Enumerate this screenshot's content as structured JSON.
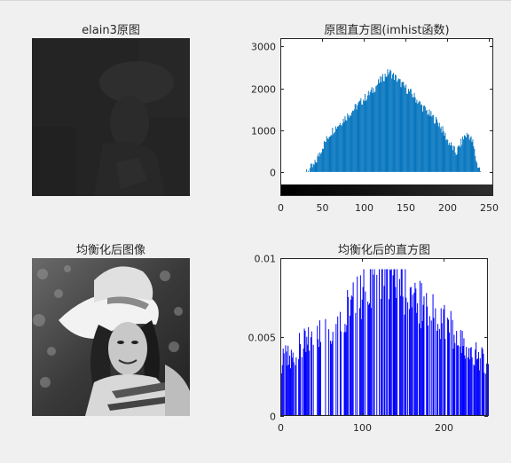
{
  "subplots": [
    {
      "title": "elain3原图"
    },
    {
      "title": "原图直方图(imhist函数)"
    },
    {
      "title": "均衡化后图像"
    },
    {
      "title": "均衡化后的直方图"
    }
  ],
  "chart_data": [
    {
      "type": "bar",
      "title": "原图直方图(imhist函数)",
      "xlabel": "",
      "ylabel": "",
      "xlim": [
        0,
        255
      ],
      "ylim": [
        -300,
        3200
      ],
      "xticks": [
        "0",
        "50",
        "100",
        "150",
        "200",
        "250"
      ],
      "yticks": [
        "0",
        "1000",
        "2000",
        "3000"
      ],
      "x": [
        30,
        40,
        50,
        60,
        70,
        80,
        90,
        100,
        110,
        120,
        130,
        140,
        150,
        160,
        170,
        180,
        190,
        200,
        210,
        220,
        225,
        230,
        235,
        240
      ],
      "values": [
        0,
        150,
        600,
        950,
        1150,
        1350,
        1550,
        1750,
        1950,
        2200,
        2400,
        2200,
        2000,
        1800,
        1550,
        1350,
        1150,
        750,
        450,
        850,
        900,
        700,
        200,
        0
      ],
      "bar_color": "#0072bd",
      "grayscale_colorbar": true
    },
    {
      "type": "bar",
      "title": "均衡化后的直方图",
      "xlabel": "",
      "ylabel": "",
      "xlim": [
        0,
        255
      ],
      "ylim": [
        0,
        0.01
      ],
      "xticks": [
        "0",
        "100",
        "200"
      ],
      "yticks": [
        "0",
        "0.005",
        "0.01"
      ],
      "x": [
        0,
        25,
        50,
        75,
        100,
        125,
        150,
        175,
        200,
        225,
        250
      ],
      "values": [
        0.0035,
        0.0045,
        0.0055,
        0.0065,
        0.008,
        0.009,
        0.0085,
        0.007,
        0.006,
        0.0048,
        0.0035
      ],
      "bar_color": "#0000ff"
    }
  ]
}
